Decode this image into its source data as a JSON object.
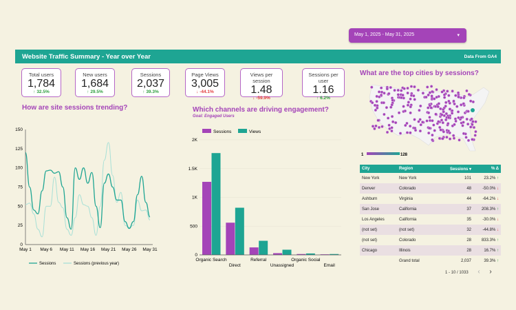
{
  "date_range": {
    "label": "May 1, 2025 - May 31, 2025",
    "caret": "▾"
  },
  "header": {
    "title": "Website Traffic Summary - Year over Year",
    "source": "Data From GA4"
  },
  "kpis": [
    {
      "label": "Total users",
      "value": "1,784",
      "delta": "32.5%",
      "dir": "up"
    },
    {
      "label": "New users",
      "value": "1,684",
      "delta": "29.5%",
      "dir": "up"
    },
    {
      "label": "Sessions",
      "value": "2,037",
      "delta": "39.3%",
      "dir": "up"
    },
    {
      "label": "Page Views",
      "value": "3,005",
      "delta": "-44.1%",
      "dir": "down"
    },
    {
      "label": "Views per session",
      "value": "1.48",
      "delta": "-59.9%",
      "dir": "down"
    },
    {
      "label": "Sessions per user",
      "value": "1.16",
      "delta": "6.2%",
      "dir": "up"
    }
  ],
  "colors": {
    "teal": "#1ea593",
    "purple": "#a444b8",
    "light_teal": "#a8e0d6",
    "up": "#2e9e3e",
    "down": "#e23b3b"
  },
  "sessions_q": "How are site sessions trending?",
  "channels_q": "Which channels are driving engagement?",
  "channels_goal": "Goal: Engaged Users",
  "cities_q": "What are the top cities by sessions?",
  "map_legend": {
    "min": "1",
    "max": "128"
  },
  "chart_data": [
    {
      "type": "line",
      "xlabel": "",
      "ylabel": "",
      "ylim": [
        0,
        150
      ],
      "yticks": [
        "0",
        "25",
        "50",
        "75",
        "100",
        "125",
        "150"
      ],
      "xticks": [
        "May 1",
        "May 6",
        "May 11",
        "May 16",
        "May 21",
        "May 26",
        "May 31"
      ],
      "legend": "bottom",
      "series": [
        {
          "name": "Sessions",
          "color": "#1ea593",
          "values": [
            120,
            75,
            45,
            40,
            70,
            96,
            97,
            93,
            95,
            75,
            35,
            20,
            100,
            85,
            100,
            80,
            94,
            50,
            22,
            80,
            92,
            75,
            58,
            58,
            30,
            21,
            30,
            65,
            89,
            55,
            36
          ]
        },
        {
          "name": "Sessions (previous year)",
          "color": "#a8e0d6",
          "values": [
            52,
            54,
            40,
            20,
            10,
            50,
            50,
            88,
            55,
            48,
            20,
            12,
            35,
            65,
            52,
            50,
            35,
            12,
            50,
            110,
            133,
            90,
            55,
            68,
            25,
            22,
            25,
            58,
            44,
            45,
            32
          ]
        }
      ]
    },
    {
      "type": "bar",
      "ylim": [
        0,
        2000
      ],
      "yticks": [
        "0",
        "500",
        "1K",
        "1.5K",
        "2K"
      ],
      "legend": "top",
      "categories": [
        "Organic Search",
        "Direct",
        "Referral",
        "Unassigned",
        "Organic Social",
        "Email"
      ],
      "series": [
        {
          "name": "Sessions",
          "color": "#a444b8",
          "values": [
            1270,
            560,
            130,
            30,
            15,
            10
          ]
        },
        {
          "name": "Views",
          "color": "#1ea593",
          "values": [
            1770,
            820,
            245,
            90,
            25,
            15
          ]
        }
      ]
    }
  ],
  "table": {
    "headers": [
      "City",
      "Region",
      "Sessions ▾",
      "% Δ"
    ],
    "rows": [
      [
        "New York",
        "New York",
        "101",
        "23.2%",
        "up"
      ],
      [
        "Denver",
        "Colorado",
        "48",
        "-50.0%",
        "down"
      ],
      [
        "Ashburn",
        "Virginia",
        "44",
        "-64.2%",
        "down"
      ],
      [
        "San Jose",
        "California",
        "37",
        "208.3%",
        "up"
      ],
      [
        "Los Angeles",
        "California",
        "35",
        "-30.0%",
        "down"
      ],
      [
        "(not set)",
        "(not set)",
        "32",
        "-44.8%",
        "down"
      ],
      [
        "(not set)",
        "Colorado",
        "28",
        "833.3%",
        "up"
      ],
      [
        "Chicago",
        "Illinois",
        "28",
        "16.7%",
        "up"
      ]
    ],
    "total": {
      "label": "Grand total",
      "sessions": "2,037",
      "delta": "39.3%"
    },
    "pager": "1 - 10 / 1033",
    "prev": "‹",
    "next": "›"
  }
}
